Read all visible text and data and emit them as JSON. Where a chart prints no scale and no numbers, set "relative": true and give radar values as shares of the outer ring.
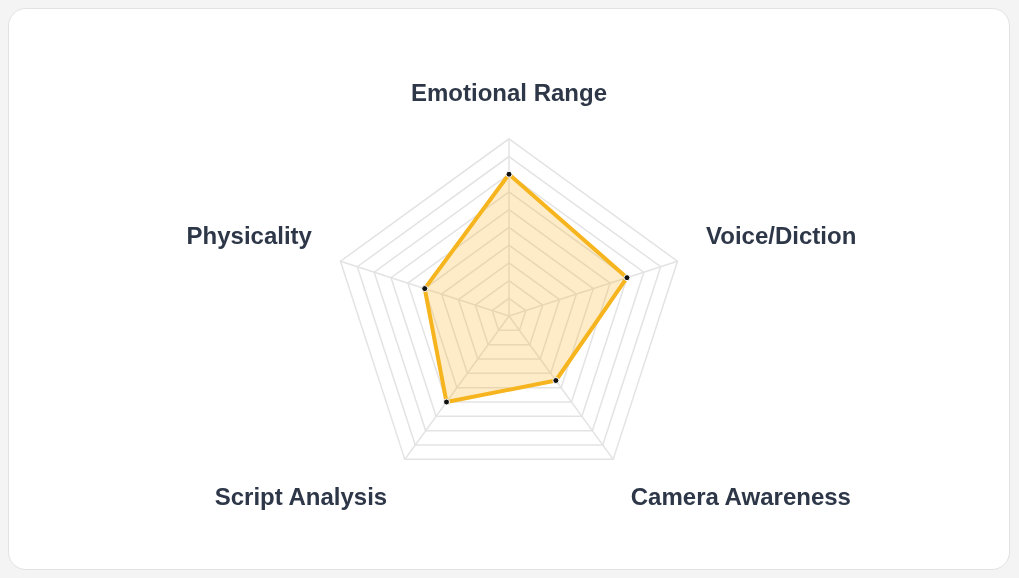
{
  "chart_data": {
    "type": "radar",
    "relative": true,
    "categories": [
      "Emotional Range",
      "Voice/Diction",
      "Camera Awareness",
      "Script Analysis",
      "Physicality"
    ],
    "series": [
      {
        "color": "#f6b51e",
        "values": [
          0.8,
          0.7,
          0.45,
          0.6,
          0.5
        ]
      }
    ],
    "grid": true,
    "marker": "circle"
  }
}
